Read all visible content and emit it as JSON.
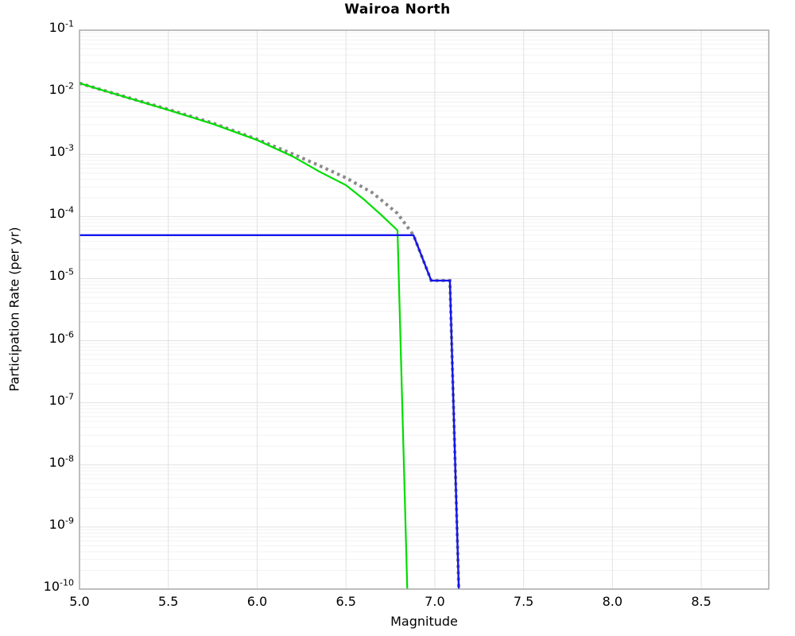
{
  "chart_data": {
    "type": "line",
    "title": "Wairoa North",
    "xlabel": "Magnitude",
    "ylabel": "Participation Rate (per yr)",
    "legend": "none",
    "x_axis": {
      "min": 5.0,
      "max": 8.88,
      "tick_values": [
        5.0,
        5.5,
        6.0,
        6.5,
        7.0,
        7.5,
        8.0,
        8.5
      ],
      "tick_labels": [
        "5.0",
        "5.5",
        "6.0",
        "6.5",
        "7.0",
        "7.5",
        "8.0",
        "8.5"
      ]
    },
    "y_axis": {
      "scale": "log",
      "min": 1e-10,
      "max": 0.1,
      "tick_exponents": [
        -1,
        -2,
        -3,
        -4,
        -5,
        -6,
        -7,
        -8,
        -9,
        -10
      ],
      "tick_base": "10"
    },
    "grid": {
      "major": true,
      "minor_log_horizontal": true
    },
    "series": [
      {
        "name": "gray-dotted-curve",
        "color": "#8a8a8a",
        "style": "dotted",
        "stroke_width": 4,
        "points": [
          [
            5.0,
            0.014
          ],
          [
            5.25,
            0.0086
          ],
          [
            5.5,
            0.0053
          ],
          [
            5.75,
            0.0032
          ],
          [
            6.0,
            0.00175
          ],
          [
            6.2,
            0.00102
          ],
          [
            6.35,
            0.00066
          ],
          [
            6.5,
            0.00042
          ],
          [
            6.65,
            0.00024
          ],
          [
            6.79,
            0.000112
          ],
          [
            6.88,
            5e-05
          ],
          [
            6.98,
            9.3e-06
          ],
          [
            7.085,
            9.3e-06
          ],
          [
            7.135,
            1e-10
          ]
        ]
      },
      {
        "name": "green-solid-curve",
        "color": "#00dd00",
        "style": "solid",
        "stroke_width": 2.2,
        "points": [
          [
            5.0,
            0.014
          ],
          [
            5.25,
            0.0085
          ],
          [
            5.5,
            0.0052
          ],
          [
            5.75,
            0.0031
          ],
          [
            6.0,
            0.0017
          ],
          [
            6.2,
            0.00093
          ],
          [
            6.35,
            0.00053
          ],
          [
            6.5,
            0.00032
          ],
          [
            6.6,
            0.00019
          ],
          [
            6.7,
            0.000105
          ],
          [
            6.79,
            6e-05
          ],
          [
            6.845,
            1e-10
          ]
        ]
      },
      {
        "name": "blue-solid-curve",
        "color": "#1414ee",
        "style": "solid",
        "stroke_width": 2.4,
        "points": [
          [
            5.0,
            5e-05
          ],
          [
            6.88,
            5e-05
          ],
          [
            6.98,
            9.3e-06
          ],
          [
            7.085,
            9.3e-06
          ],
          [
            7.135,
            1e-10
          ]
        ]
      }
    ],
    "plot_style": {
      "background": "#ffffff",
      "frame_color": "#a8a8a8",
      "grid_major_color": "#e2e2e2",
      "grid_minor_color": "#f2f2f2",
      "text_color": "#000000"
    }
  }
}
